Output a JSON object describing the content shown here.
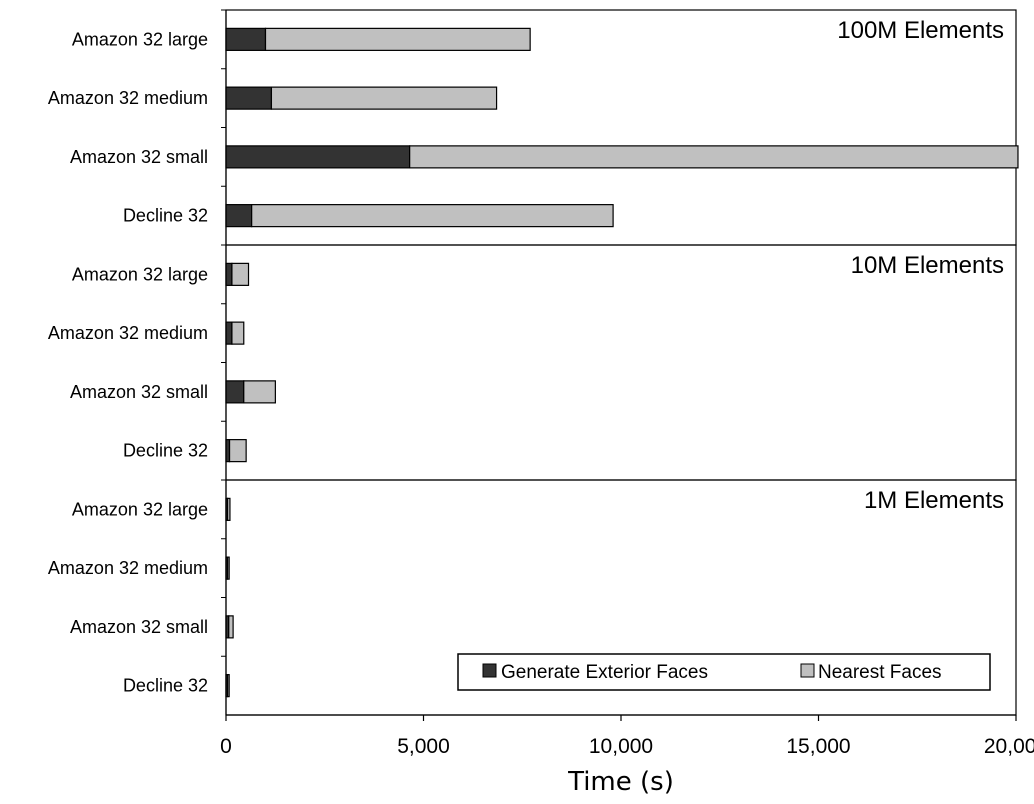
{
  "chart_data": {
    "type": "bar",
    "orientation": "horizontal",
    "stacked": true,
    "xlabel": "Time (s)",
    "xlim": [
      0,
      20000
    ],
    "xticks": [
      "0",
      "5,000",
      "10,000",
      "15,000",
      "20,000"
    ],
    "grid": false,
    "legend_position": "bottom-right",
    "series_meta": [
      {
        "name": "Generate Exterior Faces",
        "color": "#333333"
      },
      {
        "name": "Nearest Faces",
        "color": "#c0c0c0"
      }
    ],
    "panels": [
      {
        "title": "100M Elements",
        "categories": [
          "Amazon 32 large",
          "Amazon 32 medium",
          "Amazon 32 small",
          "Decline 32"
        ],
        "series": [
          {
            "name": "Generate Exterior Faces",
            "values": [
              1000,
              1150,
              4650,
              650
            ]
          },
          {
            "name": "Nearest Faces",
            "values": [
              6700,
              5700,
              15400,
              9150
            ]
          }
        ]
      },
      {
        "title": "10M Elements",
        "categories": [
          "Amazon 32 large",
          "Amazon 32 medium",
          "Amazon 32 small",
          "Decline 32"
        ],
        "series": [
          {
            "name": "Generate Exterior Faces",
            "values": [
              150,
              150,
              450,
              90
            ]
          },
          {
            "name": "Nearest Faces",
            "values": [
              420,
              300,
              800,
              420
            ]
          }
        ]
      },
      {
        "title": "1M Elements",
        "categories": [
          "Amazon 32 large",
          "Amazon 32 medium",
          "Amazon 32 small",
          "Decline 32"
        ],
        "series": [
          {
            "name": "Generate Exterior Faces",
            "values": [
              40,
              40,
              70,
              40
            ]
          },
          {
            "name": "Nearest Faces",
            "values": [
              60,
              40,
              110,
              40
            ]
          }
        ]
      }
    ]
  }
}
